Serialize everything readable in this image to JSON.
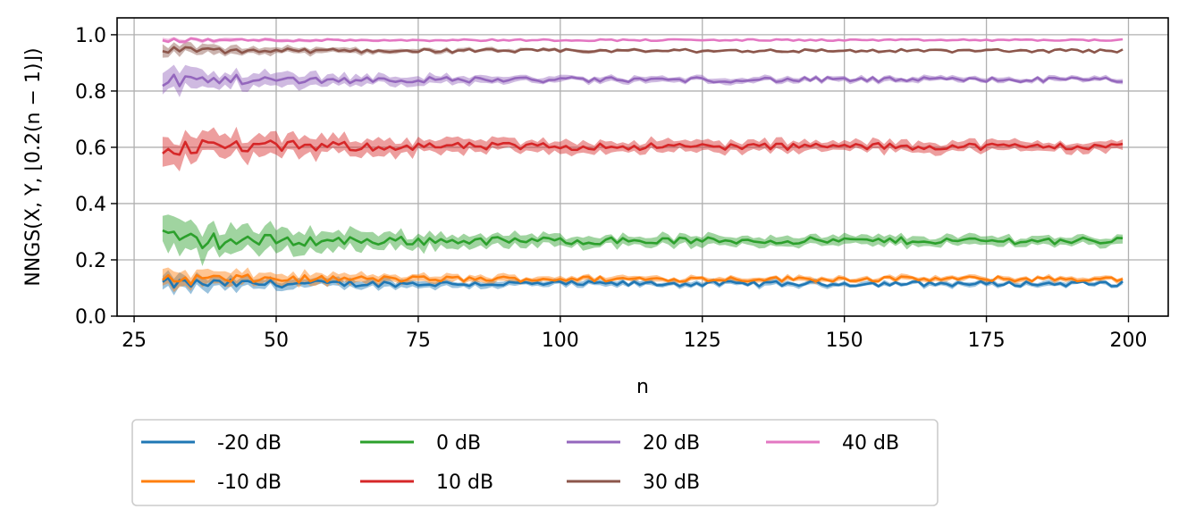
{
  "chart_data": {
    "type": "line",
    "xlabel": "n",
    "ylabel": "NNGS(X, Y, ⌊0.2(n − 1)⌋)",
    "xlim": [
      22,
      207
    ],
    "ylim": [
      0.0,
      1.06
    ],
    "xticks": [
      25,
      50,
      75,
      100,
      125,
      150,
      175,
      200
    ],
    "yticks": [
      0.0,
      0.2,
      0.4,
      0.6,
      0.8,
      1.0
    ],
    "ytick_labels": [
      "0.0",
      "0.2",
      "0.4",
      "0.6",
      "0.8",
      "1.0"
    ],
    "grid": true,
    "legend_position": "below",
    "x_range": [
      30,
      199
    ],
    "shaded_band": true,
    "series": [
      {
        "name": "-20 dB",
        "color": "#1f77b4",
        "mean": 0.115,
        "early_band": 0.025,
        "late_band": 0.008,
        "jitter": 0.006
      },
      {
        "name": "-10 dB",
        "color": "#ff7f0e",
        "mean": 0.132,
        "early_band": 0.03,
        "late_band": 0.008,
        "jitter": 0.006
      },
      {
        "name": "0 dB",
        "color": "#2ca02c",
        "mean": 0.268,
        "early_band": 0.06,
        "late_band": 0.015,
        "jitter": 0.008
      },
      {
        "name": "10 dB",
        "color": "#d62728",
        "mean": 0.603,
        "early_band": 0.05,
        "late_band": 0.017,
        "jitter": 0.008
      },
      {
        "name": "20 dB",
        "color": "#9467bd",
        "mean": 0.84,
        "early_band": 0.035,
        "late_band": 0.008,
        "jitter": 0.006
      },
      {
        "name": "30 dB",
        "color": "#8c564b",
        "mean": 0.943,
        "early_band": 0.018,
        "late_band": 0.004,
        "jitter": 0.004
      },
      {
        "name": "40 dB",
        "color": "#e377c2",
        "mean": 0.981,
        "early_band": 0.008,
        "late_band": 0.002,
        "jitter": 0.002
      }
    ]
  }
}
